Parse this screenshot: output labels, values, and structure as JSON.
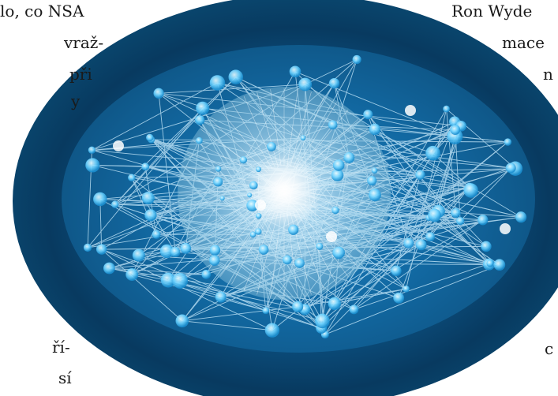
{
  "text_fragments": {
    "left": [
      "lo, co NSA",
      "vraž-",
      "při",
      "y",
      "ří-",
      "sí"
    ],
    "right": [
      "Ron Wyde",
      "mace",
      "n",
      "c"
    ]
  },
  "colors": {
    "eye_dark": "#04253f",
    "eye_mid": "#0b5f93",
    "eye_glow": "#2aa6de",
    "node": "#8fe3ff",
    "line": "#bdefff",
    "iris": "#e7f6ff"
  }
}
